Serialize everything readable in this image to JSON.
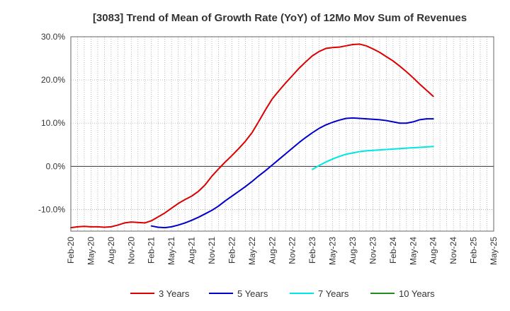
{
  "chart_data": {
    "type": "line",
    "title": "[3083]  Trend of Mean of Growth Rate (YoY) of 12Mo Mov Sum of Revenues",
    "xlabel": "",
    "ylabel": "",
    "ylim": [
      -15,
      30
    ],
    "y_ticks": [
      30,
      20,
      10,
      0,
      -10
    ],
    "y_tick_labels": [
      "30.0%",
      "20.0%",
      "10.0%",
      "0.0%",
      "-10.0%"
    ],
    "x_range": [
      0,
      63
    ],
    "x_tick_positions": [
      0,
      3,
      6,
      9,
      12,
      15,
      18,
      21,
      24,
      27,
      30,
      33,
      36,
      39,
      42,
      45,
      48,
      51,
      54,
      57,
      60,
      63
    ],
    "x_tick_labels": [
      "Feb-20",
      "May-20",
      "Aug-20",
      "Nov-20",
      "Feb-21",
      "May-21",
      "Aug-21",
      "Nov-21",
      "Feb-22",
      "May-22",
      "Aug-22",
      "Nov-22",
      "Feb-23",
      "May-23",
      "Aug-23",
      "Nov-23",
      "Feb-24",
      "May-24",
      "Aug-24",
      "Nov-24",
      "Feb-25",
      "May-25"
    ],
    "grid": true,
    "legend_position": "bottom",
    "series": [
      {
        "name": "3 Years",
        "color": "#dd0000",
        "x": [
          0,
          1,
          2,
          3,
          4,
          5,
          6,
          7,
          8,
          9,
          10,
          11,
          12,
          13,
          14,
          15,
          16,
          17,
          18,
          19,
          20,
          21,
          22,
          23,
          24,
          25,
          26,
          27,
          28,
          29,
          30,
          31,
          32,
          33,
          34,
          35,
          36,
          37,
          38,
          39,
          40,
          41,
          42,
          43,
          44,
          45,
          46,
          47,
          48,
          49,
          50,
          51,
          52,
          53,
          54,
          55,
          56,
          57,
          58,
          59,
          60
        ],
        "values": [
          -14.2,
          -14.0,
          -13.9,
          -14.0,
          -14.0,
          -14.1,
          -14.0,
          -13.6,
          -13.1,
          -12.9,
          -13.0,
          -13.1,
          -12.6,
          -11.7,
          -10.8,
          -9.7,
          -8.6,
          -7.7,
          -6.9,
          -5.8,
          -4.3,
          -2.3,
          -0.6,
          1.0,
          2.5,
          4.1,
          5.8,
          7.8,
          10.4,
          13.1,
          15.6,
          17.5,
          19.3,
          21.0,
          22.7,
          24.2,
          25.6,
          26.6,
          27.3,
          27.5,
          27.6,
          27.9,
          28.2,
          28.3,
          27.9,
          27.2,
          26.4,
          25.4,
          24.4,
          23.2,
          21.9,
          20.5,
          19.0,
          17.6,
          16.2,
          null,
          null,
          null,
          null,
          null,
          null
        ]
      },
      {
        "name": "5 Years",
        "color": "#0000cc",
        "x": [
          12,
          13,
          14,
          15,
          16,
          17,
          18,
          19,
          20,
          21,
          22,
          23,
          24,
          25,
          26,
          27,
          28,
          29,
          30,
          31,
          32,
          33,
          34,
          35,
          36,
          37,
          38,
          39,
          40,
          41,
          42,
          43,
          44,
          45,
          46,
          47,
          48,
          49,
          50,
          51,
          52,
          53,
          54
        ],
        "values": [
          -13.8,
          -14.1,
          -14.2,
          -14.0,
          -13.6,
          -13.1,
          -12.5,
          -11.8,
          -11.0,
          -10.2,
          -9.2,
          -8.0,
          -6.9,
          -5.8,
          -4.7,
          -3.5,
          -2.2,
          -1.0,
          0.3,
          1.6,
          2.9,
          4.2,
          5.5,
          6.7,
          7.8,
          8.8,
          9.6,
          10.2,
          10.7,
          11.1,
          11.2,
          11.1,
          11.0,
          10.9,
          10.8,
          10.6,
          10.3,
          10.0,
          10.0,
          10.3,
          10.8,
          11.0,
          11.0
        ]
      },
      {
        "name": "7 Years",
        "color": "#00e5e5",
        "x": [
          36,
          37,
          38,
          39,
          40,
          41,
          42,
          43,
          44,
          45,
          46,
          47,
          48,
          49,
          50,
          51,
          52,
          53,
          54
        ],
        "values": [
          -0.7,
          0.2,
          1.0,
          1.7,
          2.3,
          2.8,
          3.1,
          3.4,
          3.6,
          3.7,
          3.8,
          3.9,
          4.0,
          4.1,
          4.2,
          4.3,
          4.4,
          4.5,
          4.6
        ]
      },
      {
        "name": "10 Years",
        "color": "#228b22",
        "x": [],
        "values": []
      }
    ]
  }
}
